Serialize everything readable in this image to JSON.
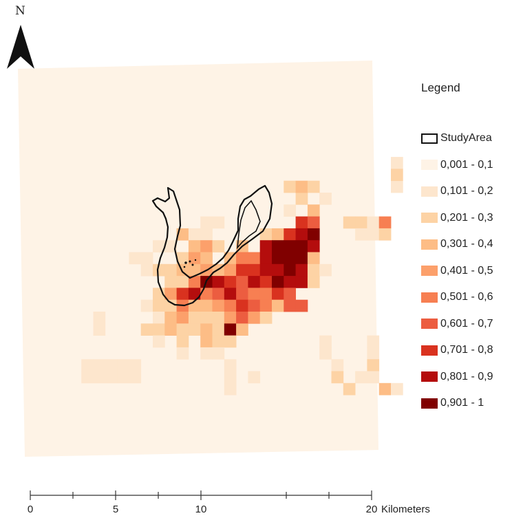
{
  "north_arrow": {
    "letter": "N",
    "icon": "north-arrow-icon"
  },
  "legend": {
    "title": "Legend",
    "study_area_label": "StudyArea",
    "classes": [
      {
        "label": "0,001 - 0,1",
        "color": "#fef3e6"
      },
      {
        "label": "0,101 - 0,2",
        "color": "#fde6cd"
      },
      {
        "label": "0,201 - 0,3",
        "color": "#fdd3a5"
      },
      {
        "label": "0,301 - 0,4",
        "color": "#fdbd86"
      },
      {
        "label": "0,401 - 0,5",
        "color": "#fca06b"
      },
      {
        "label": "0,501 - 0,6",
        "color": "#f77f52"
      },
      {
        "label": "0,601 - 0,7",
        "color": "#ec5d40"
      },
      {
        "label": "0,701 - 0,8",
        "color": "#d9321f"
      },
      {
        "label": "0,801 - 0,9",
        "color": "#b40d0d"
      },
      {
        "label": "0,901 - 1",
        "color": "#800000"
      }
    ]
  },
  "scale_bar": {
    "labels": [
      "0",
      "5",
      "10",
      "20"
    ],
    "unit": "Kilometers"
  },
  "colors": {
    "outline": "#111111",
    "background": "#ffffff"
  }
}
